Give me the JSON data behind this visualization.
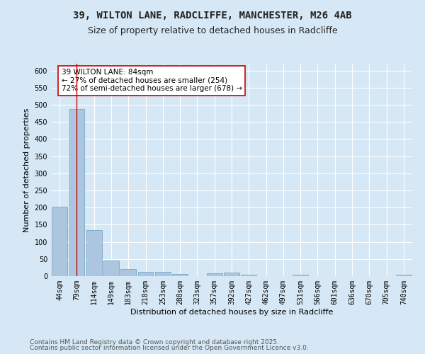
{
  "title_line1": "39, WILTON LANE, RADCLIFFE, MANCHESTER, M26 4AB",
  "title_line2": "Size of property relative to detached houses in Radcliffe",
  "xlabel": "Distribution of detached houses by size in Radcliffe",
  "ylabel": "Number of detached properties",
  "categories": [
    "44sqm",
    "79sqm",
    "114sqm",
    "149sqm",
    "183sqm",
    "218sqm",
    "253sqm",
    "288sqm",
    "323sqm",
    "357sqm",
    "392sqm",
    "427sqm",
    "462sqm",
    "497sqm",
    "531sqm",
    "566sqm",
    "601sqm",
    "636sqm",
    "670sqm",
    "705sqm",
    "740sqm"
  ],
  "values": [
    203,
    487,
    135,
    46,
    20,
    13,
    12,
    6,
    1,
    9,
    10,
    5,
    1,
    0,
    5,
    0,
    1,
    0,
    0,
    1,
    4
  ],
  "bar_color": "#adc6e0",
  "bar_edge_color": "#6a9fc0",
  "property_line_x": 1.0,
  "property_line_color": "#cc0000",
  "annotation_text": "39 WILTON LANE: 84sqm\n← 27% of detached houses are smaller (254)\n72% of semi-detached houses are larger (678) →",
  "annotation_box_color": "#cc0000",
  "annotation_text_color": "#000000",
  "ylim": [
    0,
    620
  ],
  "yticks": [
    0,
    50,
    100,
    150,
    200,
    250,
    300,
    350,
    400,
    450,
    500,
    550,
    600
  ],
  "background_color": "#d6e8f5",
  "plot_bg_color": "#d6e8f5",
  "footer_line1": "Contains HM Land Registry data © Crown copyright and database right 2025.",
  "footer_line2": "Contains public sector information licensed under the Open Government Licence v3.0.",
  "title_fontsize": 10,
  "subtitle_fontsize": 9,
  "axis_label_fontsize": 8,
  "tick_fontsize": 7,
  "footer_fontsize": 6.5,
  "annotation_fontsize": 7.5
}
